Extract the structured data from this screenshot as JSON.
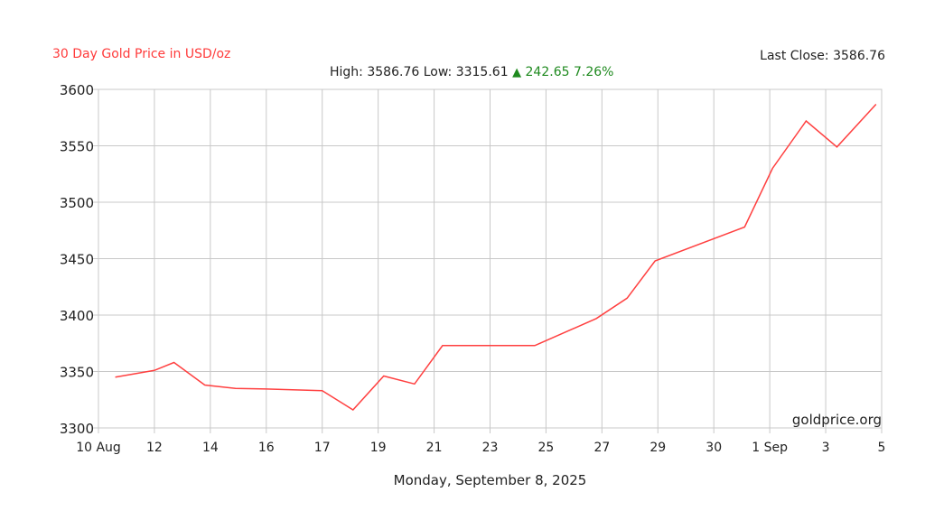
{
  "header": {
    "title": "30 Day Gold Price in USD/oz",
    "last_close_label": "Last Close:",
    "last_close_value": "3586.76",
    "high_label": "High:",
    "high_value": "3586.76",
    "low_label": "Low:",
    "low_value": "3315.61",
    "change_value": "242.65",
    "change_pct": "7.26%"
  },
  "footer": {
    "date": "Monday, September 8, 2025"
  },
  "watermark": "goldprice.org",
  "colors": {
    "line": "#ff4040",
    "title": "#ff3b3b",
    "positive": "#1f8a1f",
    "grid": "#c8c8c8"
  },
  "chart_data": {
    "type": "line",
    "title": "30 Day Gold Price in USD/oz",
    "xlabel": "Monday, September 8, 2025",
    "ylabel": "",
    "ylim": [
      3300,
      3600
    ],
    "yticks": [
      3300,
      3350,
      3400,
      3450,
      3500,
      3550,
      3600
    ],
    "xticks": [
      "10 Aug",
      "12",
      "14",
      "16",
      "17",
      "19",
      "21",
      "23",
      "25",
      "27",
      "29",
      "30",
      "1 Sep",
      "3",
      "5"
    ],
    "grid": true,
    "series": [
      {
        "name": "",
        "points": [
          {
            "x": 0.3,
            "y": 3345
          },
          {
            "x": 1.0,
            "y": 3351
          },
          {
            "x": 1.35,
            "y": 3358
          },
          {
            "x": 1.9,
            "y": 3338
          },
          {
            "x": 2.45,
            "y": 3335
          },
          {
            "x": 3.0,
            "y": 3334.5
          },
          {
            "x": 4.0,
            "y": 3333
          },
          {
            "x": 4.55,
            "y": 3316
          },
          {
            "x": 5.1,
            "y": 3346
          },
          {
            "x": 5.65,
            "y": 3339
          },
          {
            "x": 6.15,
            "y": 3373
          },
          {
            "x": 7.0,
            "y": 3373
          },
          {
            "x": 7.8,
            "y": 3373
          },
          {
            "x": 8.9,
            "y": 3397
          },
          {
            "x": 9.45,
            "y": 3415
          },
          {
            "x": 9.95,
            "y": 3448
          },
          {
            "x": 11.55,
            "y": 3478
          },
          {
            "x": 12.05,
            "y": 3530
          },
          {
            "x": 12.65,
            "y": 3572
          },
          {
            "x": 13.2,
            "y": 3549
          },
          {
            "x": 13.9,
            "y": 3586.76
          }
        ]
      }
    ]
  }
}
